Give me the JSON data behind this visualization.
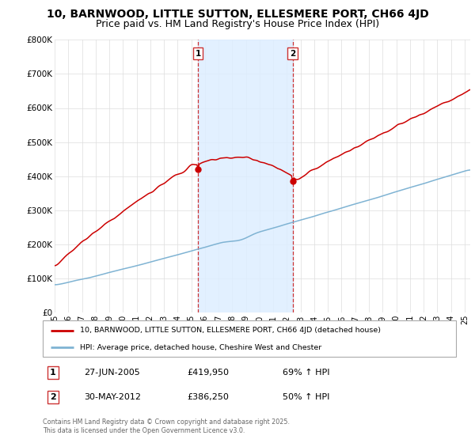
{
  "title1": "10, BARNWOOD, LITTLE SUTTON, ELLESMERE PORT, CH66 4JD",
  "title2": "Price paid vs. HM Land Registry's House Price Index (HPI)",
  "ylim": [
    0,
    800000
  ],
  "yticks": [
    0,
    100000,
    200000,
    300000,
    400000,
    500000,
    600000,
    700000,
    800000
  ],
  "ytick_labels": [
    "£0",
    "£100K",
    "£200K",
    "£300K",
    "£400K",
    "£500K",
    "£600K",
    "£700K",
    "£800K"
  ],
  "red_color": "#cc0000",
  "blue_color": "#7fb3d3",
  "marker1_price": 419950,
  "marker2_price": 386250,
  "vline_color": "#cc3333",
  "shaded_color": "#ddeeff",
  "legend1": "10, BARNWOOD, LITTLE SUTTON, ELLESMERE PORT, CH66 4JD (detached house)",
  "legend2": "HPI: Average price, detached house, Cheshire West and Chester",
  "sale1_date": "27-JUN-2005",
  "sale1_price": "£419,950",
  "sale1_hpi": "69% ↑ HPI",
  "sale2_date": "30-MAY-2012",
  "sale2_price": "£386,250",
  "sale2_hpi": "50% ↑ HPI",
  "footer": "Contains HM Land Registry data © Crown copyright and database right 2025.\nThis data is licensed under the Open Government Licence v3.0.",
  "title_fontsize": 10,
  "subtitle_fontsize": 9
}
